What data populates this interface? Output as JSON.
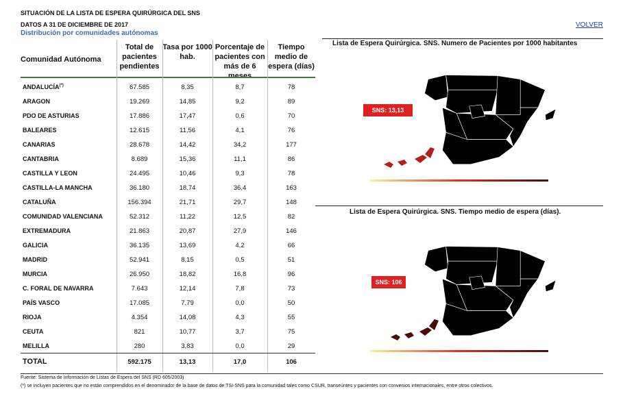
{
  "header": {
    "title": "SITUACIÓN DE LA LISTA DE ESPERA QUIRÚRGICA DEL SNS",
    "date": "DATOS A 31 DE DICIEMBRE DE 2017",
    "subtitle": "Distribución por comunidades autónomas",
    "link": "VOLVER"
  },
  "table": {
    "headers": [
      "Comunidad Autónoma",
      "Total de pacientes pendientes",
      "Tasa por 1000 hab.",
      "Porcentaje de pacientes con más de 6 meses",
      "Tiempo medio de espera (días)"
    ],
    "row_note": "(*)",
    "rows": [
      [
        "ANDALUCÍA",
        "67.585",
        "8,35",
        "8,7",
        "78"
      ],
      [
        "ARAGON",
        "19.269",
        "14,85",
        "9,2",
        "89"
      ],
      [
        "PDO DE ASTURIAS",
        "17.886",
        "17,47",
        "0,6",
        "70"
      ],
      [
        "BALEARES",
        "12.615",
        "11,56",
        "4,1",
        "76"
      ],
      [
        "CANARIAS",
        "28.678",
        "14,42",
        "34,2",
        "177"
      ],
      [
        "CANTABRIA",
        "8.689",
        "15,36",
        "11,1",
        "86"
      ],
      [
        "CASTILLA Y LEON",
        "24.495",
        "10,46",
        "9,3",
        "78"
      ],
      [
        "CASTILLA-LA MANCHA",
        "36.180",
        "18,74",
        "36,4",
        "163"
      ],
      [
        "CATALUÑA",
        "156.394",
        "21,71",
        "29,7",
        "148"
      ],
      [
        "COMUNIDAD VALENCIANA",
        "52.312",
        "11,22",
        "12,5",
        "82"
      ],
      [
        "EXTREMADURA",
        "21.863",
        "20,87",
        "27,9",
        "146"
      ],
      [
        "GALICIA",
        "36.135",
        "13,69",
        "4,2",
        "66"
      ],
      [
        "MADRID",
        "52.941",
        "8,15",
        "0,5",
        "51"
      ],
      [
        "MURCIA",
        "26.950",
        "18,82",
        "16,8",
        "96"
      ],
      [
        "C. FORAL DE NAVARRA",
        "7.643",
        "12,14",
        "7,8",
        "73"
      ],
      [
        "PAÍS VASCO",
        "17.085",
        "7,79",
        "0,0",
        "50"
      ],
      [
        "RIOJA",
        "4.354",
        "14,08",
        "4,3",
        "55"
      ],
      [
        "CEUTA",
        "821",
        "10,77",
        "3,7",
        "75"
      ],
      [
        "MELILLA",
        "280",
        "3,83",
        "0,0",
        "29"
      ]
    ],
    "total": [
      "TOTAL",
      "592.175",
      "13,13",
      "17,0",
      "106"
    ]
  },
  "maps": [
    {
      "title": "Lista de Espera Quirúrgica. SNS. Numero de Pacientes por 1000 habitantes",
      "label": "SNS: 13,13"
    },
    {
      "title": "Lista de Espera Quirúrgica. SNS. Tiempo medio de espera (días).",
      "label": "SNS: 106"
    }
  ],
  "footer": {
    "source": "Fuente: Sistema de Información de Listas de Espera del SNS (RD 605/2003)",
    "note": "(*) se incluyen pacientes que no están comprendidos en el denominador de la base de datos de TSI-SNS para la comunidad tales como CSUR, transeúntes y pacientes con convenios internacionales, entre otros colectivos."
  }
}
